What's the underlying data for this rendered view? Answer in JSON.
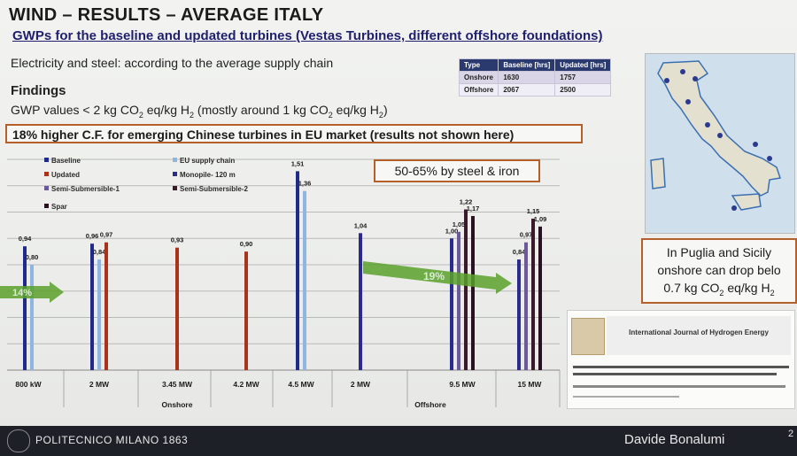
{
  "title": "WIND – RESULTS – AVERAGE ITALY",
  "subtitle": "GWPs for the baseline and updated turbines (Vestas Turbines, different offshore foundations)",
  "supply_note": "Electricity and steel: according to the average supply chain",
  "findings_heading": "Findings",
  "gwp": {
    "p1": "GWP values < 2 kg CO",
    "s1": "2",
    "p2": " eq/kg H",
    "s2": "2",
    "p3": " (mostly around 1 kg CO",
    "s3": "2",
    "p4": " eq/kg H",
    "s4": "2",
    "p5": ")"
  },
  "cf_callout": "18% higher C.F. for emerging Chinese turbines in EU market (results not shown here)",
  "table": {
    "headers": [
      "Type",
      "Baseline [hrs]",
      "Updated [hrs]"
    ],
    "rows": [
      [
        "Onshore",
        "1630",
        "1757"
      ],
      [
        "Offshore",
        "2067",
        "2500"
      ]
    ]
  },
  "steel_callout": "50-65% by steel & iron",
  "puglia": {
    "l1": "In Puglia and Sicily",
    "l2": "onshore can drop belo",
    "l3a": "0.7 kg CO",
    "l3s1": "2",
    "l3b": " eq/kg H",
    "l3s2": "2"
  },
  "journal": {
    "name": "International Journal of Hydrogen Energy"
  },
  "footer": {
    "institution": "POLITECNICO MILANO 1863",
    "author": "Davide Bonalumi",
    "page": "2"
  },
  "colors": {
    "baseline": "#1f2a8a",
    "eu_supply_chain": "#8fb6e0",
    "updated": "#a8341e",
    "monopile": "#2b2a8f",
    "semi_sub_1": "#6a5a9a",
    "semi_sub_2": "#3a1a2a",
    "spar": "#2a1020",
    "arrow": "#5aa02a",
    "callout_border": "#b5602a"
  },
  "chart_data": {
    "type": "bar",
    "legend": [
      {
        "key": "baseline",
        "label": "Baseline"
      },
      {
        "key": "eu_supply_chain",
        "label": "EU supply chain"
      },
      {
        "key": "updated",
        "label": "Updated"
      },
      {
        "key": "monopile",
        "label": "Monopile- 120 m"
      },
      {
        "key": "semi_sub_1",
        "label": "Semi-Submersible-1"
      },
      {
        "key": "semi_sub_2",
        "label": "Semi-Submersible-2"
      },
      {
        "key": "spar",
        "label": "Spar"
      }
    ],
    "groups": [
      {
        "label": "800 kW",
        "bars": [
          {
            "s": "baseline",
            "v": 0.94,
            "label": "0,94"
          },
          {
            "s": "eu_supply_chain",
            "v": 0.8,
            "label": "0,80"
          }
        ]
      },
      {
        "label": "2 MW",
        "bars": [
          {
            "s": "baseline",
            "v": 0.96,
            "label": "0,96"
          },
          {
            "s": "eu_supply_chain",
            "v": 0.84,
            "label": "0,84"
          },
          {
            "s": "updated",
            "v": 0.97,
            "label": "0,97"
          }
        ]
      },
      {
        "label": "3.45 MW",
        "bars": [
          {
            "s": "updated",
            "v": 0.93,
            "label": "0,93"
          }
        ]
      },
      {
        "label": "4.2 MW",
        "bars": [
          {
            "s": "updated",
            "v": 0.9,
            "label": "0,90"
          }
        ]
      },
      {
        "label": "4.5 MW",
        "bars": [
          {
            "s": "baseline",
            "v": 1.51,
            "label": "1,51"
          },
          {
            "s": "eu_supply_chain",
            "v": 1.36,
            "label": "1,36"
          }
        ]
      },
      {
        "label": "2 MW",
        "bars": [
          {
            "s": "monopile",
            "v": 1.04,
            "label": "1,04"
          }
        ]
      },
      {
        "label": "9.5 MW",
        "bars": [
          {
            "s": "monopile",
            "v": 1.0,
            "label": "1,00"
          },
          {
            "s": "semi_sub_1",
            "v": 1.05,
            "label": "1,05"
          },
          {
            "s": "semi_sub_2",
            "v": 1.22,
            "label": "1,22"
          },
          {
            "s": "spar",
            "v": 1.17,
            "label": "1,17"
          }
        ]
      },
      {
        "label": "15 MW",
        "bars": [
          {
            "s": "monopile",
            "v": 0.84,
            "label": "0,84"
          },
          {
            "s": "semi_sub_1",
            "v": 0.97,
            "label": "0,97"
          },
          {
            "s": "semi_sub_2",
            "v": 1.15,
            "label": "1,15"
          },
          {
            "s": "spar",
            "v": 1.09,
            "label": "1,09"
          }
        ]
      }
    ],
    "categories_group_labels": [
      "Onshore",
      "Offshore"
    ],
    "annotations": [
      {
        "text": "14%",
        "from_group": 0,
        "to_group": 0
      },
      {
        "text": "19%",
        "from_group": 5,
        "to_group": 7
      }
    ],
    "ylim": [
      0,
      1.6
    ],
    "grid": true
  }
}
